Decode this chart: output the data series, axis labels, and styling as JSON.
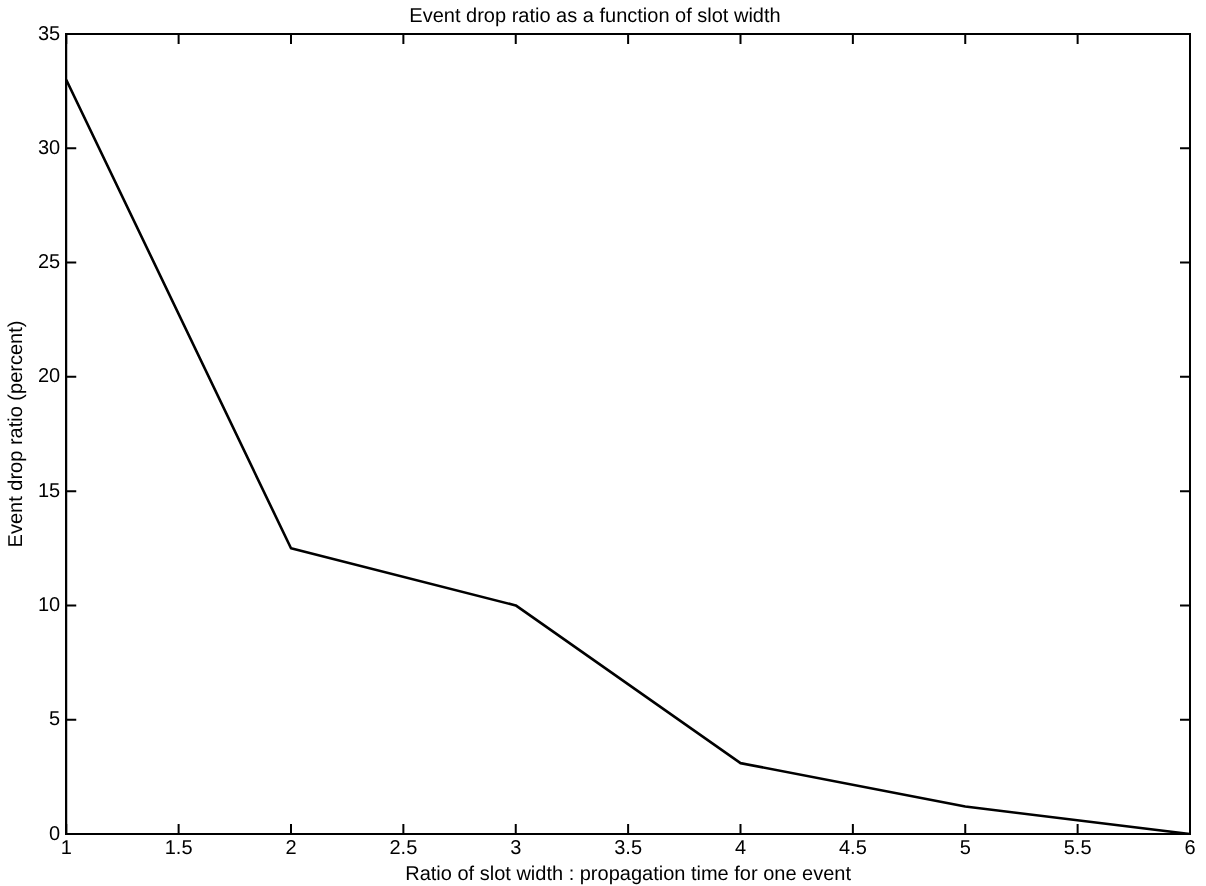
{
  "chart_data": {
    "type": "line",
    "title": "Event drop ratio as a function of slot width",
    "xlabel": "Ratio of slot width : propagation time for one event",
    "ylabel": "Event drop ratio (percent)",
    "x": [
      1,
      2,
      3,
      4,
      5,
      6
    ],
    "series": [
      {
        "color": "#000000",
        "values": [
          33,
          12.5,
          10,
          3.1,
          1.2,
          0
        ]
      }
    ],
    "xlim": [
      1,
      6
    ],
    "xticks": [
      1,
      1.5,
      2,
      2.5,
      3,
      3.5,
      4,
      4.5,
      5,
      5.5,
      6
    ],
    "ylim": [
      0,
      35
    ],
    "yticks": [
      0,
      5,
      10,
      15,
      20,
      25,
      30,
      35
    ],
    "grid": false,
    "legend": false,
    "marker": "none",
    "line_style": "solid"
  }
}
